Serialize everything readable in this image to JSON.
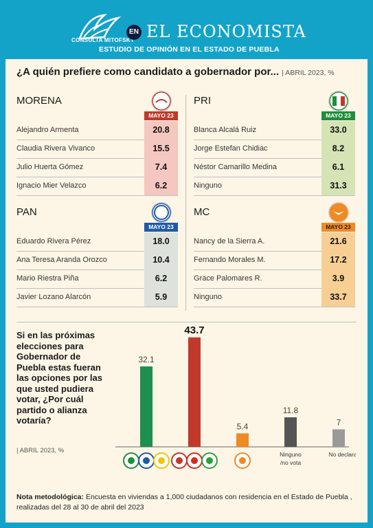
{
  "header": {
    "logo_text": "CONSULTA MITOFSKY",
    "en_badge": "EN",
    "brand": "EL ECONOMISTA",
    "subtitle": "ESTUDIO DE OPINIÓN EN EL ESTADO DE PUEBLA"
  },
  "title": {
    "question": "¿A quién prefiere como candidato a gobernador por...",
    "date": "| ABRIL 2023, %"
  },
  "parties": [
    {
      "name": "MORENA",
      "logo": "morena",
      "tag": "MAYO 23",
      "tag_color": "#c0392b",
      "cell_color": "#f4c7c0",
      "candidates": [
        {
          "name": "Alejandro Armenta",
          "value": "20.8"
        },
        {
          "name": "Claudia Rivera Vivanco",
          "value": "15.5"
        },
        {
          "name": "Julio Huerta Gómez",
          "value": "7.4"
        },
        {
          "name": "Ignacio Mier Velazco",
          "value": "6.2"
        }
      ]
    },
    {
      "name": "PRI",
      "logo": "PRI",
      "tag": "MAYO 23",
      "tag_color": "#1e8f3a",
      "cell_color": "#d6e3b5",
      "candidates": [
        {
          "name": "Blanca Alcalá Ruiz",
          "value": "33.0"
        },
        {
          "name": "Jorge Estefan Chidiac",
          "value": "8.2"
        },
        {
          "name": "Néstor Camarillo Medina",
          "value": "6.1"
        },
        {
          "name": "Ninguno",
          "value": "31.3"
        }
      ]
    },
    {
      "name": "PAN",
      "logo": "PAN",
      "tag": "MAYO 23",
      "tag_color": "#1f5aa6",
      "cell_color": "#dde2dc",
      "candidates": [
        {
          "name": "Eduardo Rivera Pérez",
          "value": "18.0"
        },
        {
          "name": "Ana Teresa Aranda Orozco",
          "value": "10.4"
        },
        {
          "name": "Mario Riestra Piña",
          "value": "6.2"
        },
        {
          "name": "Javier Lozano Alarcón",
          "value": "5.9"
        }
      ]
    },
    {
      "name": "MC",
      "logo": "MC",
      "tag": "MAYO 23",
      "tag_color": "#f08a24",
      "cell_color": "#f7cf94",
      "candidates": [
        {
          "name": "Nancy de la Sierra A.",
          "value": "21.6"
        },
        {
          "name": "Fernando Morales M.",
          "value": "17.2"
        },
        {
          "name": "Grace Palomares R.",
          "value": "3.9"
        },
        {
          "name": "Ninguno",
          "value": "33.7"
        }
      ]
    }
  ],
  "question": {
    "text": "Si en las próximas elecciones para Gobernador de Puebla estas fueran las opciones por las que usted pudiera votar, ¿Por cuál partido o alianza votaría?",
    "date": "| ABRIL 2023, %"
  },
  "chart_data": {
    "type": "bar",
    "categories": [
      "PRI-PAN-PRD",
      "MORENA-PT-PVEM",
      "MC",
      "Ninguno /no vota",
      "No declara"
    ],
    "values": [
      32.1,
      43.7,
      5.4,
      11.8,
      7
    ],
    "value_labels": [
      "32.1",
      "43.7",
      "5.4",
      "11.8",
      "7"
    ],
    "colors": [
      "#1e8f4e",
      "#c0392b",
      "#f08a24",
      "#555555",
      "#9a9a9a"
    ],
    "ylim": [
      0,
      45
    ],
    "title": "",
    "xlabel": "",
    "ylabel": ""
  },
  "note": {
    "label": "Nota metodológica:",
    "text": "Encuesta en viviendas a 1,000 ciudadanos con residencia en el Estado de Puebla , realizadas del 28 al 30 de abril del 2023"
  }
}
